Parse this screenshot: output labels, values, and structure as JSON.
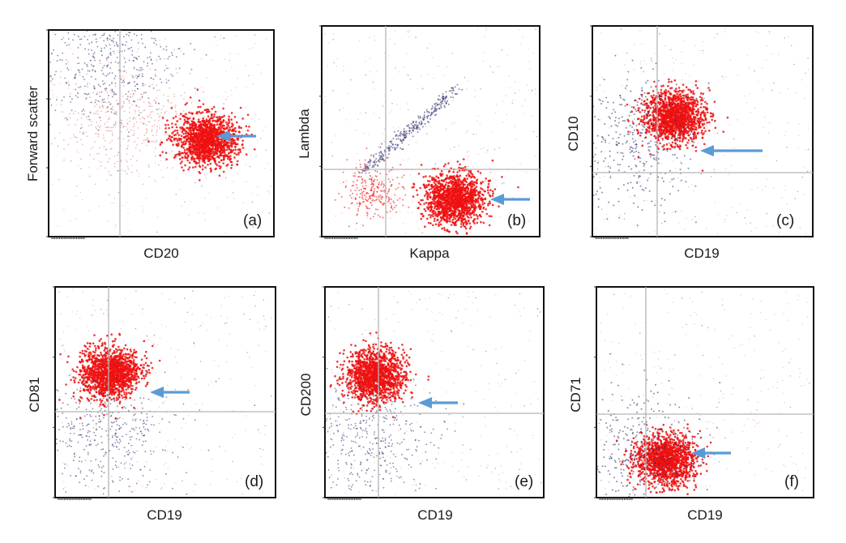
{
  "figure": {
    "colors": {
      "population": "#ee1111",
      "other_events": "#e88080",
      "lymphocytes": "#2a2a6a",
      "gate": "#b5b5b5",
      "arrow": "#5b9bd5"
    }
  },
  "chart_data": [
    {
      "type": "scatter",
      "panel": "(a)",
      "xlabel": "CD20",
      "ylabel": "Forward scatter",
      "arrow": "right of main red population, pointing left",
      "populations": [
        {
          "color": "red",
          "x": 0.7,
          "y": 0.47,
          "note": "dense"
        },
        {
          "color": "light-red",
          "x": 0.35,
          "y": 0.55,
          "note": "diffuse"
        },
        {
          "color": "dark-blue",
          "x": 0.25,
          "y": 0.82,
          "note": "diffuse"
        }
      ]
    },
    {
      "type": "scatter",
      "panel": "(b)",
      "xlabel": "Kappa",
      "ylabel": "Lambda",
      "arrow": "right of main red population, pointing left",
      "populations": [
        {
          "color": "red",
          "x": 0.61,
          "y": 0.18,
          "note": "dense"
        },
        {
          "color": "red",
          "x": 0.23,
          "y": 0.22,
          "note": "small"
        },
        {
          "color": "dark-blue",
          "x": 0.4,
          "y": 0.5,
          "note": "diagonal"
        }
      ]
    },
    {
      "type": "scatter",
      "panel": "(c)",
      "xlabel": "CD19",
      "ylabel": "CD10",
      "arrow": "right of main red population, pointing left",
      "populations": [
        {
          "color": "red",
          "x": 0.37,
          "y": 0.57,
          "note": "dense"
        },
        {
          "color": "dark-blue",
          "x": 0.22,
          "y": 0.45,
          "note": "mixed"
        }
      ]
    },
    {
      "type": "scatter",
      "panel": "(d)",
      "xlabel": "CD19",
      "ylabel": "CD81",
      "arrow": "right of main red population, pointing left",
      "populations": [
        {
          "color": "red",
          "x": 0.25,
          "y": 0.59,
          "note": "dense"
        },
        {
          "color": "dark-blue",
          "x": 0.22,
          "y": 0.31,
          "note": "diffuse"
        }
      ]
    },
    {
      "type": "scatter",
      "panel": "(e)",
      "xlabel": "CD19",
      "ylabel": "CD200",
      "arrow": "right of main red population, pointing left",
      "populations": [
        {
          "color": "red",
          "x": 0.23,
          "y": 0.58,
          "note": "dense"
        },
        {
          "color": "dark-blue",
          "x": 0.2,
          "y": 0.28,
          "note": "diffuse"
        }
      ]
    },
    {
      "type": "scatter",
      "panel": "(f)",
      "xlabel": "CD19",
      "ylabel": "CD71",
      "arrow": "right of main red population, pointing left",
      "populations": [
        {
          "color": "red",
          "x": 0.32,
          "y": 0.18,
          "note": "dense"
        },
        {
          "color": "dark-blue",
          "x": 0.2,
          "y": 0.2,
          "note": "mixed"
        }
      ]
    }
  ]
}
